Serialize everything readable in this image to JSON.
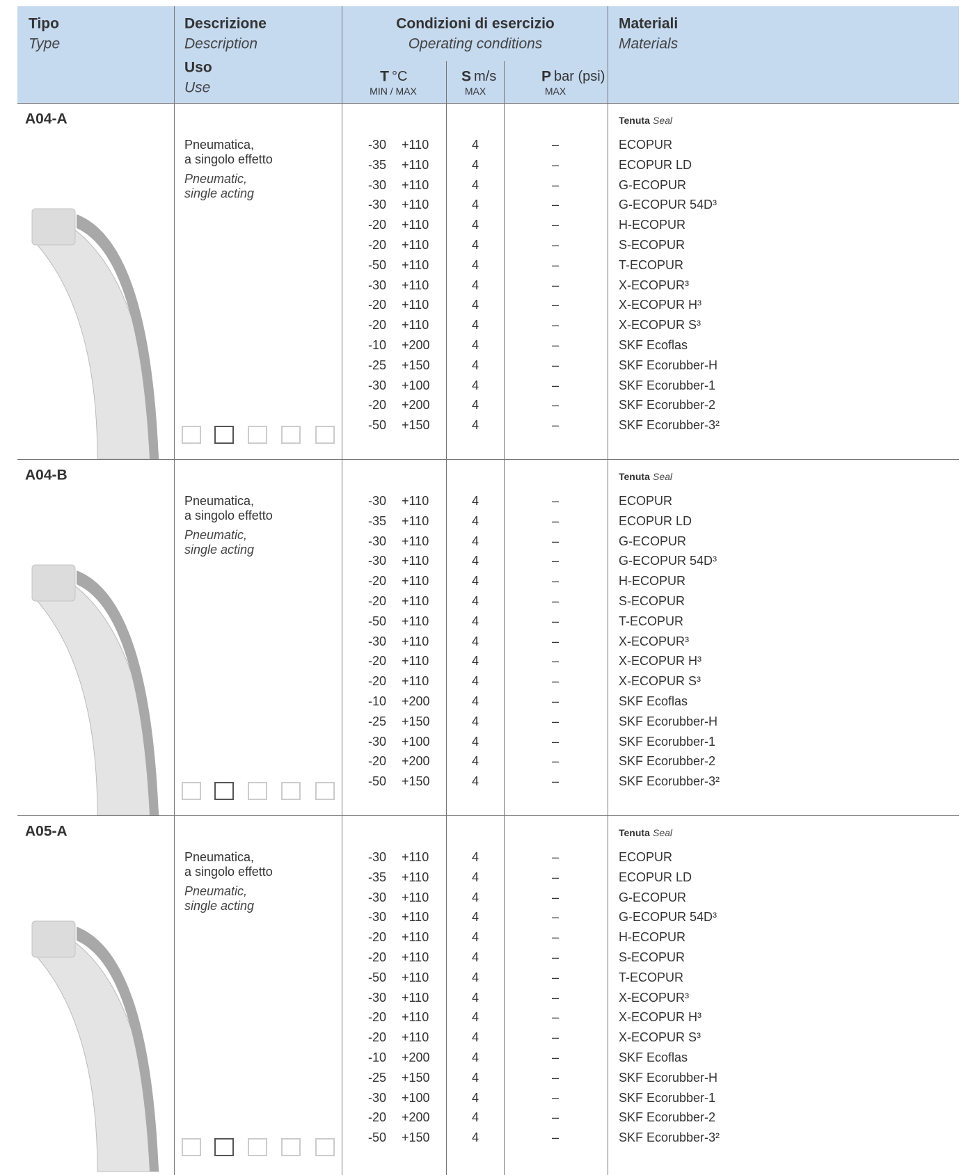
{
  "header": {
    "type_it": "Tipo",
    "type_en": "Type",
    "description_it": "Descrizione",
    "description_en": "Description",
    "use_it": "Uso",
    "use_en": "Use",
    "conditions_it": "Condizioni di esercizio",
    "conditions_en": "Operating conditions",
    "temperature": {
      "symbol": "T",
      "unit": "°C",
      "note": "MIN / MAX"
    },
    "speed": {
      "symbol": "S",
      "unit": "m/s",
      "note": "MAX"
    },
    "pressure": {
      "symbol": "P",
      "unit": "bar (psi)",
      "note": "MAX"
    },
    "materials_it": "Materiali",
    "materials_en": "Materials"
  },
  "sections": [
    {
      "code": "A04-A",
      "use_it": [
        "Pneumatica,",
        "a singolo effetto"
      ],
      "use_en": [
        "Pneumatic,",
        "single acting"
      ],
      "seal_it": "Tenuta",
      "seal_en": "Seal",
      "rows": [
        [
          "-30",
          "+110",
          "4",
          "–",
          "ECOPUR"
        ],
        [
          "-35",
          "+110",
          "4",
          "–",
          "ECOPUR LD"
        ],
        [
          "-30",
          "+110",
          "4",
          "–",
          "G-ECOPUR"
        ],
        [
          "-30",
          "+110",
          "4",
          "–",
          "G-ECOPUR 54D³"
        ],
        [
          "-20",
          "+110",
          "4",
          "–",
          "H-ECOPUR"
        ],
        [
          "-20",
          "+110",
          "4",
          "–",
          "S-ECOPUR"
        ],
        [
          "-50",
          "+110",
          "4",
          "–",
          "T-ECOPUR"
        ],
        [
          "-30",
          "+110",
          "4",
          "–",
          "X-ECOPUR³"
        ],
        [
          "-20",
          "+110",
          "4",
          "–",
          "X-ECOPUR H³"
        ],
        [
          "-20",
          "+110",
          "4",
          "–",
          "X-ECOPUR S³"
        ],
        [
          "-10",
          "+200",
          "4",
          "–",
          "SKF Ecoflas"
        ],
        [
          "-25",
          "+150",
          "4",
          "–",
          "SKF Ecorubber-H"
        ],
        [
          "-30",
          "+100",
          "4",
          "–",
          "SKF Ecorubber-1"
        ],
        [
          "-20",
          "+200",
          "4",
          "–",
          "SKF Ecorubber-2"
        ],
        [
          "-50",
          "+150",
          "4",
          "–",
          "SKF Ecorubber-3²"
        ]
      ]
    },
    {
      "code": "A04-B",
      "use_it": [
        "Pneumatica,",
        "a singolo effetto"
      ],
      "use_en": [
        "Pneumatic,",
        "single acting"
      ],
      "seal_it": "Tenuta",
      "seal_en": "Seal",
      "rows": [
        [
          "-30",
          "+110",
          "4",
          "–",
          "ECOPUR"
        ],
        [
          "-35",
          "+110",
          "4",
          "–",
          "ECOPUR LD"
        ],
        [
          "-30",
          "+110",
          "4",
          "–",
          "G-ECOPUR"
        ],
        [
          "-30",
          "+110",
          "4",
          "–",
          "G-ECOPUR 54D³"
        ],
        [
          "-20",
          "+110",
          "4",
          "–",
          "H-ECOPUR"
        ],
        [
          "-20",
          "+110",
          "4",
          "–",
          "S-ECOPUR"
        ],
        [
          "-50",
          "+110",
          "4",
          "–",
          "T-ECOPUR"
        ],
        [
          "-30",
          "+110",
          "4",
          "–",
          "X-ECOPUR³"
        ],
        [
          "-20",
          "+110",
          "4",
          "–",
          "X-ECOPUR H³"
        ],
        [
          "-20",
          "+110",
          "4",
          "–",
          "X-ECOPUR S³"
        ],
        [
          "-10",
          "+200",
          "4",
          "–",
          "SKF Ecoflas"
        ],
        [
          "-25",
          "+150",
          "4",
          "–",
          "SKF Ecorubber-H"
        ],
        [
          "-30",
          "+100",
          "4",
          "–",
          "SKF Ecorubber-1"
        ],
        [
          "-20",
          "+200",
          "4",
          "–",
          "SKF Ecorubber-2"
        ],
        [
          "-50",
          "+150",
          "4",
          "–",
          "SKF Ecorubber-3²"
        ]
      ]
    },
    {
      "code": "A05-A",
      "use_it": [
        "Pneumatica,",
        "a singolo effetto"
      ],
      "use_en": [
        "Pneumatic,",
        "single acting"
      ],
      "seal_it": "Tenuta",
      "seal_en": "Seal",
      "rows": [
        [
          "-30",
          "+110",
          "4",
          "–",
          "ECOPUR"
        ],
        [
          "-35",
          "+110",
          "4",
          "–",
          "ECOPUR LD"
        ],
        [
          "-30",
          "+110",
          "4",
          "–",
          "G-ECOPUR"
        ],
        [
          "-30",
          "+110",
          "4",
          "–",
          "G-ECOPUR 54D³"
        ],
        [
          "-20",
          "+110",
          "4",
          "–",
          "H-ECOPUR"
        ],
        [
          "-20",
          "+110",
          "4",
          "–",
          "S-ECOPUR"
        ],
        [
          "-50",
          "+110",
          "4",
          "–",
          "T-ECOPUR"
        ],
        [
          "-30",
          "+110",
          "4",
          "–",
          "X-ECOPUR³"
        ],
        [
          "-20",
          "+110",
          "4",
          "–",
          "X-ECOPUR H³"
        ],
        [
          "-20",
          "+110",
          "4",
          "–",
          "X-ECOPUR S³"
        ],
        [
          "-10",
          "+200",
          "4",
          "–",
          "SKF Ecoflas"
        ],
        [
          "-25",
          "+150",
          "4",
          "–",
          "SKF Ecorubber-H"
        ],
        [
          "-30",
          "+100",
          "4",
          "–",
          "SKF Ecorubber-1"
        ],
        [
          "-20",
          "+200",
          "4",
          "–",
          "SKF Ecorubber-2"
        ],
        [
          "-50",
          "+150",
          "4",
          "–",
          "SKF Ecorubber-3²"
        ]
      ]
    }
  ]
}
